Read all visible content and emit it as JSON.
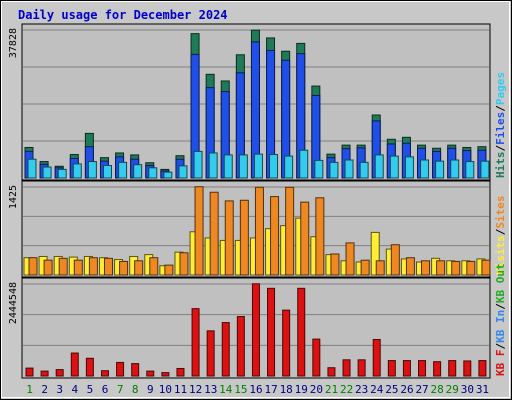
{
  "chart_data": {
    "type": "bar",
    "title": "Daily usage for December 2024",
    "days": [
      "1",
      "2",
      "3",
      "4",
      "5",
      "6",
      "7",
      "8",
      "9",
      "10",
      "11",
      "12",
      "13",
      "14",
      "15",
      "16",
      "17",
      "18",
      "19",
      "20",
      "21",
      "22",
      "23",
      "24",
      "25",
      "26",
      "27",
      "28",
      "29",
      "30",
      "31"
    ],
    "weekend_days": [
      "1",
      "7",
      "8",
      "14",
      "15",
      "21",
      "22",
      "28",
      "29"
    ],
    "colors": {
      "hits": "#1f7a58",
      "files": "#1f4fe6",
      "pages": "#33ccee",
      "visits": "#ffee33",
      "sites": "#ee8822",
      "kb_in": "#3388ee",
      "kb_out": "#22aa22",
      "kb_f": "#dd1111",
      "weekday_label": "#000080",
      "weekend_label": "#008000",
      "panel_bg": "#c0c0c0",
      "frame_bg": "#c8c8c8"
    },
    "panels": [
      {
        "name": "hits-files-pages",
        "ymax": 37828,
        "ymax_label": "37828",
        "legend": [
          {
            "label": "Hits",
            "color": "#1f7a58"
          },
          {
            "label": "/",
            "color": "#000000"
          },
          {
            "label": "Files",
            "color": "#1f4fe6"
          },
          {
            "label": "/",
            "color": "#000000"
          },
          {
            "label": "Pages",
            "color": "#33ccee"
          }
        ],
        "series": [
          {
            "name": "Hits",
            "key": "hits",
            "values": [
              7800,
              4200,
              3000,
              6000,
              11400,
              5200,
              6400,
              5900,
              3900,
              2200,
              5700,
              36900,
              26500,
              24800,
              31500,
              37800,
              35800,
              32400,
              34400,
              23500,
              6100,
              8400,
              8400,
              16100,
              9900,
              10400,
              8400,
              7600,
              8400,
              7800,
              8000
            ]
          },
          {
            "name": "Files",
            "key": "files",
            "values": [
              6800,
              3500,
              2600,
              5000,
              8000,
              4300,
              5400,
              4800,
              3200,
              1800,
              4800,
              31600,
              23100,
              22100,
              26900,
              34800,
              32600,
              30100,
              31800,
              21100,
              5200,
              7500,
              7700,
              14600,
              8700,
              8900,
              7600,
              6800,
              7600,
              7000,
              7100
            ]
          },
          {
            "name": "Pages",
            "key": "pages",
            "values": [
              4800,
              2800,
              2200,
              3600,
              4200,
              3200,
              4000,
              3400,
              2600,
              1500,
              3100,
              6800,
              6400,
              5900,
              5900,
              6100,
              6000,
              5600,
              7100,
              4500,
              4000,
              4600,
              4000,
              5900,
              5600,
              5400,
              4600,
              4300,
              4600,
              4200,
              4300
            ]
          }
        ]
      },
      {
        "name": "visits-sites",
        "ymax": 1425,
        "ymax_label": "1425",
        "legend": [
          {
            "label": "Visits",
            "color": "#ffee33"
          },
          {
            "label": "/",
            "color": "#000000"
          },
          {
            "label": "Sites",
            "color": "#ee8822"
          }
        ],
        "series": [
          {
            "name": "Visits",
            "key": "visits",
            "values": [
              280,
              300,
              300,
              290,
              300,
              280,
              250,
              300,
              330,
              150,
              370,
              700,
              600,
              560,
              560,
              600,
              750,
              800,
              920,
              620,
              330,
              230,
              210,
              690,
              420,
              260,
              210,
              270,
              230,
              230,
              260
            ]
          },
          {
            "name": "Sites",
            "key": "sites",
            "values": [
              280,
              240,
              270,
              240,
              280,
              270,
              220,
              230,
              280,
              160,
              360,
              1430,
              1340,
              1200,
              1210,
              1420,
              1270,
              1420,
              1180,
              1250,
              340,
              520,
              240,
              230,
              490,
              280,
              230,
              230,
              220,
              220,
              240
            ]
          }
        ]
      },
      {
        "name": "kbytes",
        "ymax": 2444548,
        "ymax_label": "2444548",
        "legend": [
          {
            "label": "KB F",
            "color": "#dd1111"
          },
          {
            "label": "/",
            "color": "#000000"
          },
          {
            "label": "KB In",
            "color": "#3388ee"
          },
          {
            "label": "/",
            "color": "#000000"
          },
          {
            "label": "KB Out",
            "color": "#22aa22"
          }
        ],
        "series": [
          {
            "name": "KB F",
            "key": "kb_f",
            "values": [
              210000,
              130000,
              170000,
              610000,
              470000,
              140000,
              360000,
              330000,
              130000,
              90000,
              200000,
              1790000,
              1200000,
              1420000,
              1580000,
              2450000,
              2330000,
              1750000,
              2330000,
              980000,
              220000,
              430000,
              430000,
              970000,
              410000,
              410000,
              410000,
              380000,
              410000,
              400000,
              410000
            ]
          }
        ]
      }
    ]
  }
}
